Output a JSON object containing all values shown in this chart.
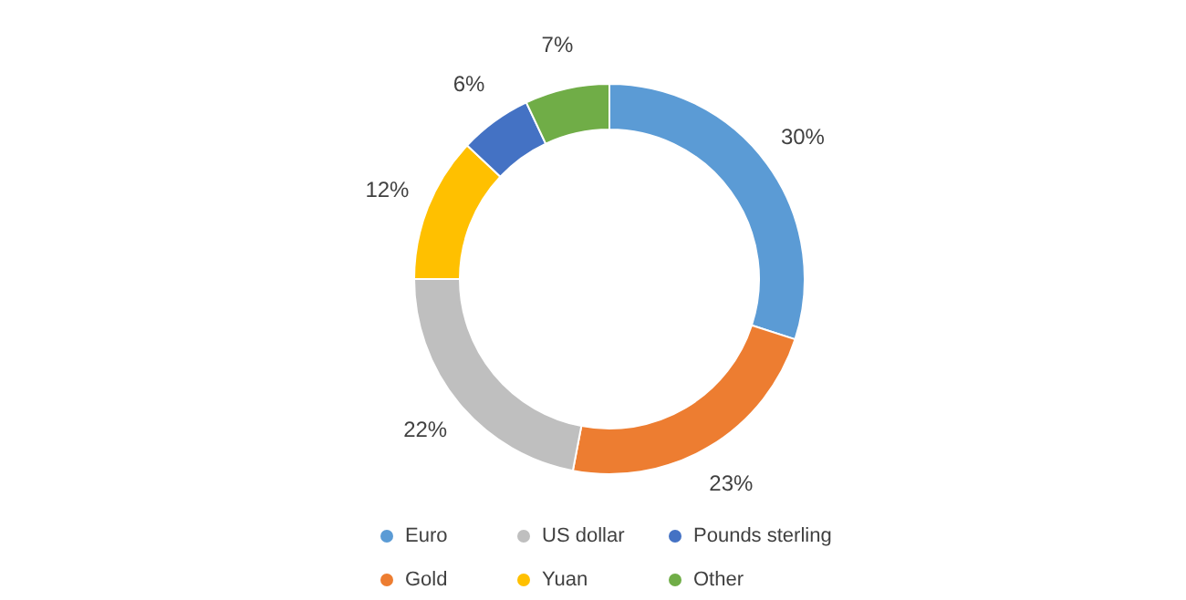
{
  "chart_data": {
    "type": "donut",
    "categories": [
      "Euro",
      "Gold",
      "US dollar",
      "Yuan",
      "Pounds sterling",
      "Other"
    ],
    "values": [
      30,
      23,
      22,
      12,
      6,
      7
    ],
    "colors": [
      "#5b9bd5",
      "#ed7d31",
      "#bfbfbf",
      "#ffc000",
      "#4472c4",
      "#70ad47"
    ],
    "value_labels": [
      "30%",
      "23%",
      "22%",
      "12%",
      "6%",
      "7%"
    ],
    "legend": "bottom"
  }
}
